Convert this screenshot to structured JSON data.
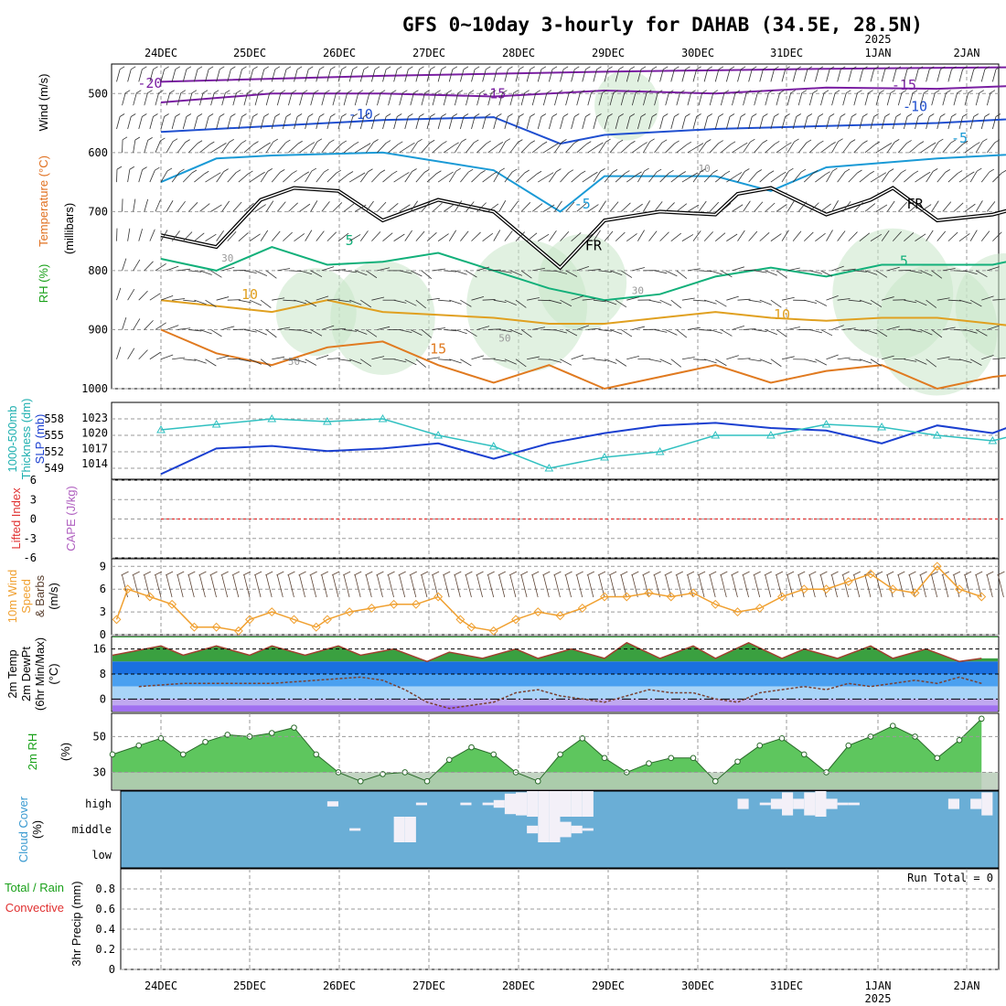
{
  "title": "GFS 0~10day 3-hourly for DAHAB (34.5E, 28.5N)",
  "x_dates": [
    "24DEC",
    "25DEC",
    "26DEC",
    "27DEC",
    "28DEC",
    "29DEC",
    "30DEC",
    "31DEC",
    "1JAN",
    "2JAN"
  ],
  "x_year": "2025",
  "colors": {
    "grid": "#9a9a9a",
    "cloud_bg": "#6aaed6",
    "cloud_fill": "#f3f0f8",
    "rh_fill": "#5ec65e",
    "rh_light": "#c9e6c9"
  },
  "chart_data": [
    {
      "type": "line",
      "panel": "upper-air",
      "ylabel_parts": [
        "RH (%)",
        "Temperature (°C)",
        "Wind (m/s)"
      ],
      "yunit": "(millibars)",
      "yticks": [
        "500",
        "600",
        "700",
        "800",
        "900",
        "1000"
      ],
      "ylim": [
        450,
        1000
      ],
      "contour_labels": [
        "-20",
        "-15",
        "-15",
        "-10",
        "-10",
        "-5",
        "-5",
        "5",
        "5",
        "10",
        "10",
        "15",
        "FR",
        "FR",
        "10",
        "30",
        "30",
        "30",
        "50",
        "50"
      ],
      "series": [
        {
          "name": "-20",
          "x": [
            0,
            20,
            40,
            60,
            80
          ],
          "y": [
            480,
            470,
            463,
            458,
            455
          ]
        },
        {
          "name": "-15",
          "x": [
            0,
            10,
            20,
            30,
            40,
            50,
            60,
            70,
            80
          ],
          "y": [
            515,
            500,
            500,
            505,
            495,
            500,
            490,
            492,
            485
          ]
        },
        {
          "name": "-10",
          "x": [
            0,
            10,
            20,
            30,
            36,
            40,
            50,
            60,
            70,
            80
          ],
          "y": [
            565,
            555,
            545,
            540,
            585,
            570,
            560,
            555,
            550,
            540
          ]
        },
        {
          "name": "-5",
          "x": [
            0,
            5,
            10,
            20,
            30,
            36,
            40,
            50,
            55,
            60,
            70,
            80
          ],
          "y": [
            650,
            610,
            605,
            600,
            630,
            700,
            640,
            640,
            665,
            625,
            610,
            600
          ]
        },
        {
          "name": "FR",
          "x": [
            0,
            5,
            9,
            12,
            16,
            20,
            25,
            30,
            36,
            40,
            45,
            50,
            52,
            55,
            60,
            64,
            66,
            70,
            75,
            80
          ],
          "y": [
            740,
            760,
            680,
            660,
            665,
            715,
            680,
            700,
            795,
            715,
            700,
            705,
            670,
            660,
            705,
            680,
            660,
            715,
            705,
            680
          ]
        },
        {
          "name": "5",
          "x": [
            0,
            5,
            10,
            15,
            20,
            25,
            30,
            35,
            40,
            45,
            50,
            55,
            60,
            65,
            70,
            75,
            80
          ],
          "y": [
            780,
            800,
            760,
            790,
            785,
            770,
            800,
            830,
            850,
            840,
            810,
            795,
            810,
            790,
            790,
            790,
            770
          ]
        },
        {
          "name": "10",
          "x": [
            0,
            5,
            10,
            15,
            20,
            25,
            30,
            35,
            40,
            45,
            50,
            55,
            60,
            65,
            70,
            75,
            80
          ],
          "y": [
            850,
            860,
            870,
            850,
            870,
            875,
            880,
            890,
            890,
            880,
            870,
            880,
            885,
            880,
            880,
            890,
            900
          ]
        },
        {
          "name": "15",
          "x": [
            0,
            5,
            10,
            15,
            20,
            25,
            30,
            35,
            40,
            45,
            50,
            55,
            60,
            65,
            70,
            75,
            80
          ],
          "y": [
            900,
            940,
            960,
            930,
            920,
            960,
            990,
            960,
            1000,
            980,
            960,
            990,
            970,
            960,
            1000,
            980,
            970
          ]
        }
      ]
    },
    {
      "type": "line",
      "panel": "slp-thickness",
      "ylabel_parts": [
        "1000-500mb",
        "Thickness (dm)",
        "SLP (mb)"
      ],
      "yticks_left": [
        "549",
        "552",
        "555",
        "558"
      ],
      "yticks_right": [
        "1014",
        "1017",
        "1020",
        "1023"
      ],
      "ylim_left": [
        547,
        561
      ],
      "ylim_right": [
        1011,
        1026
      ],
      "series": [
        {
          "name": "SLP",
          "x": [
            0,
            5,
            10,
            15,
            20,
            25,
            30,
            35,
            40,
            45,
            50,
            55,
            60,
            65,
            70,
            75,
            80
          ],
          "y": [
            1012,
            1017,
            1017.5,
            1016.5,
            1017,
            1018,
            1015,
            1018,
            1020,
            1021.5,
            1022,
            1021,
            1020.5,
            1018,
            1021.5,
            1020,
            1024
          ]
        },
        {
          "name": "Thickness",
          "x": [
            0,
            5,
            10,
            15,
            20,
            25,
            30,
            35,
            40,
            45,
            50,
            55,
            60,
            65,
            70,
            75,
            80
          ],
          "y": [
            556,
            557,
            558,
            557.5,
            558,
            555,
            553,
            549,
            551,
            552,
            555,
            555,
            557,
            556.5,
            555,
            554,
            556.5
          ]
        }
      ]
    },
    {
      "type": "line",
      "panel": "cape-li",
      "ylabel_parts": [
        "Lifted Index",
        "CAPE (J/kg)"
      ],
      "yticks": [
        "6",
        "3",
        "0",
        "-3",
        "-6"
      ],
      "ylim": [
        -6,
        6
      ],
      "series": [
        {
          "name": "Lifted Index",
          "x": [
            0,
            80
          ],
          "y": [
            0,
            0
          ]
        }
      ]
    },
    {
      "type": "line",
      "panel": "wind10m",
      "ylabel_parts": [
        "10m Wind",
        "Speed",
        "& Barbs",
        "(m/s)"
      ],
      "yticks": [
        "0",
        "3",
        "6",
        "9"
      ],
      "ylim": [
        0,
        10
      ],
      "series": [
        {
          "name": "Speed",
          "x": [
            0,
            2,
            3,
            5,
            7,
            9,
            11,
            13,
            14,
            16,
            18,
            20,
            21,
            23,
            25,
            27,
            29,
            31,
            33,
            34,
            36,
            38,
            40,
            42,
            44,
            46,
            48,
            50,
            52,
            54,
            56,
            58,
            60,
            62,
            64,
            66,
            68,
            70,
            72,
            74,
            76,
            78,
            80
          ],
          "y": [
            2.5,
            2,
            6,
            5,
            4,
            1,
            1,
            0.5,
            2,
            3,
            2,
            1,
            2,
            3,
            3.5,
            4,
            4,
            5,
            2,
            1,
            0.5,
            2,
            3,
            2.5,
            3.5,
            5,
            5,
            5.5,
            5,
            5.5,
            4,
            3,
            3.5,
            5,
            6,
            6,
            7,
            8,
            6,
            5.5,
            9,
            6,
            5
          ]
        }
      ]
    },
    {
      "type": "area",
      "panel": "temp2m",
      "ylabel_parts": [
        "2m Temp",
        "2m DewPt",
        "(6hr Min/Max)",
        "(°C)"
      ],
      "yticks": [
        "0",
        "8",
        "16"
      ],
      "ylim": [
        -4,
        20
      ],
      "series": [
        {
          "name": "2m Temp",
          "x": [
            0,
            3,
            6,
            8,
            11,
            14,
            16,
            19,
            22,
            24,
            27,
            30,
            32,
            35,
            38,
            40,
            43,
            46,
            48,
            51,
            54,
            56,
            59,
            62,
            64,
            67,
            70,
            72,
            75,
            78,
            80
          ],
          "y": [
            17,
            14,
            17,
            14,
            17,
            14,
            17,
            14,
            17,
            14,
            16,
            12,
            15,
            13,
            16,
            13,
            16,
            13,
            18,
            13,
            17,
            13,
            18,
            13,
            16,
            13,
            17,
            13,
            16,
            12,
            13
          ]
        },
        {
          "name": "2m DewPt",
          "x": [
            0,
            4,
            8,
            12,
            16,
            20,
            24,
            26,
            28,
            30,
            32,
            34,
            36,
            38,
            40,
            42,
            44,
            46,
            48,
            50,
            52,
            54,
            56,
            58,
            60,
            62,
            64,
            66,
            68,
            70,
            72,
            74,
            76,
            78,
            80
          ],
          "y": [
            3,
            4,
            5,
            5,
            5,
            6,
            7,
            6,
            3,
            -1,
            -3,
            -2,
            -1,
            2,
            3,
            1,
            0,
            -1,
            1,
            3,
            2,
            2,
            0,
            -1,
            2,
            3,
            4,
            3,
            5,
            4,
            5,
            6,
            5,
            7,
            5
          ]
        }
      ]
    },
    {
      "type": "area",
      "panel": "rh2m",
      "ylabel_parts": [
        "2m RH",
        "(%)"
      ],
      "yticks": [
        "30",
        "50"
      ],
      "ylim": [
        20,
        63
      ],
      "series": [
        {
          "name": "2m RH",
          "x": [
            0,
            2,
            4,
            6,
            8,
            10,
            12,
            14,
            16,
            18,
            20,
            22,
            24,
            26,
            28,
            30,
            32,
            34,
            36,
            38,
            40,
            42,
            44,
            46,
            48,
            50,
            52,
            54,
            56,
            58,
            60,
            62,
            64,
            66,
            68,
            70,
            72,
            74,
            76,
            78,
            80
          ],
          "y": [
            36,
            40,
            45,
            49,
            40,
            47,
            51,
            50,
            52,
            55,
            40,
            30,
            25,
            29,
            30,
            25,
            37,
            44,
            40,
            30,
            25,
            40,
            49,
            38,
            30,
            35,
            38,
            38,
            25,
            36,
            45,
            49,
            40,
            30,
            45,
            50,
            56,
            50,
            38,
            48,
            60
          ]
        }
      ]
    },
    {
      "type": "heatmap",
      "panel": "cloud",
      "ylabel_parts": [
        "Cloud Cover",
        "(%)"
      ],
      "levels": [
        "high",
        "middle",
        "low"
      ],
      "series": [
        {
          "name": "high",
          "x": [
            21,
            29,
            33,
            35,
            36,
            37,
            38,
            39,
            40,
            41,
            42,
            43,
            44,
            58,
            60,
            61,
            62,
            63,
            64,
            65,
            66,
            67,
            68,
            77,
            79,
            80
          ],
          "y": [
            20,
            10,
            10,
            10,
            30,
            80,
            90,
            100,
            100,
            100,
            100,
            100,
            100,
            40,
            10,
            40,
            90,
            40,
            90,
            100,
            40,
            10,
            10,
            40,
            40,
            90
          ]
        },
        {
          "name": "middle",
          "x": [
            23,
            27,
            28,
            39,
            40,
            41,
            42,
            43,
            44
          ],
          "y": [
            10,
            100,
            100,
            30,
            100,
            100,
            60,
            30,
            10
          ]
        },
        {
          "name": "low",
          "x": [],
          "y": []
        }
      ]
    },
    {
      "type": "bar",
      "panel": "precip",
      "ylabel_parts": [
        "Total / Rain",
        "Convective",
        "3hr Precip (mm)"
      ],
      "annotation": "Run Total = 0",
      "yticks": [
        "0",
        "0.2",
        "0.4",
        "0.6",
        "0.8"
      ],
      "ylim": [
        0,
        1
      ],
      "series": [
        {
          "name": "Total / Rain",
          "x": [],
          "y": []
        }
      ]
    }
  ]
}
